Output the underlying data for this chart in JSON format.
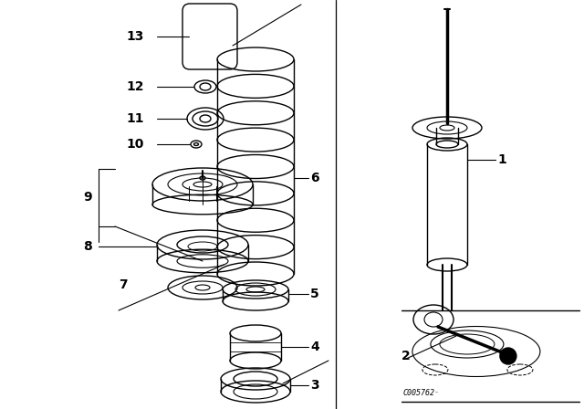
{
  "bg_color": "#ffffff",
  "line_color": "#000000",
  "fig_width": 6.4,
  "fig_height": 4.48,
  "dpi": 100,
  "code": "C005762"
}
